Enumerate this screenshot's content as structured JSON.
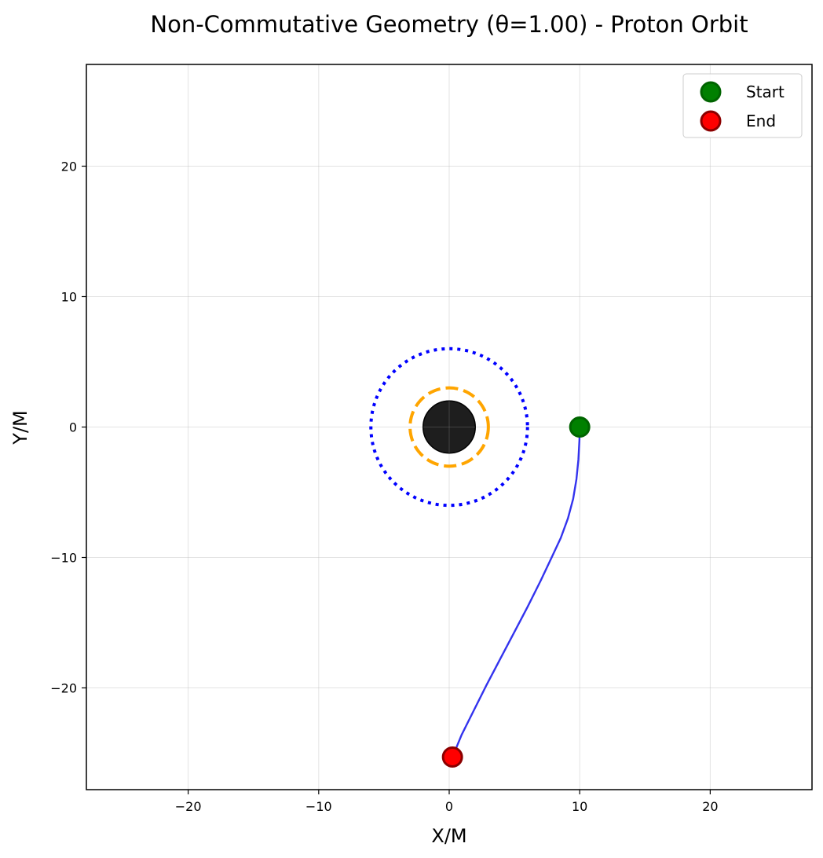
{
  "chart_data": {
    "type": "scatter",
    "title": "Non-Commutative Geometry (θ=1.00) - Proton Orbit",
    "xlabel": "X/M",
    "ylabel": "Y/M",
    "xlim": [
      -27.8,
      27.8
    ],
    "ylim": [
      -27.8,
      27.8
    ],
    "grid": true,
    "aspect": "equal",
    "xticks": [
      {
        "value": -20,
        "label": "−20"
      },
      {
        "value": -10,
        "label": "−10"
      },
      {
        "value": 0,
        "label": "0"
      },
      {
        "value": 10,
        "label": "10"
      },
      {
        "value": 20,
        "label": "20"
      }
    ],
    "yticks": [
      {
        "value": 20,
        "label": "20"
      },
      {
        "value": 10,
        "label": "10"
      },
      {
        "value": 0,
        "label": "0"
      },
      {
        "value": -10,
        "label": "−10"
      },
      {
        "value": -20,
        "label": "−20"
      }
    ],
    "black_hole": {
      "radius": 2.0,
      "color": "#1e1e1e"
    },
    "circles": [
      {
        "name": "photon-sphere",
        "radius": 3.0,
        "color": "#ffa500",
        "style": "dashed"
      },
      {
        "name": "isco",
        "radius": 6.0,
        "color": "#0000ff",
        "style": "dotted"
      }
    ],
    "trajectory": {
      "color": "#3333ee",
      "x": [
        10.0,
        9.98,
        9.9,
        9.75,
        9.5,
        9.1,
        8.55,
        7.85,
        7.0,
        6.0,
        4.95,
        3.9,
        2.85,
        1.85,
        0.95,
        0.25
      ],
      "y": [
        0.0,
        -1.0,
        -2.5,
        -4.0,
        -5.5,
        -7.0,
        -8.5,
        -10.0,
        -11.8,
        -13.8,
        -15.8,
        -17.8,
        -19.8,
        -21.8,
        -23.6,
        -25.3
      ]
    },
    "markers": [
      {
        "label": "Start",
        "x": 10.0,
        "y": 0.0,
        "fill": "#008000",
        "edge": "#006400"
      },
      {
        "label": "End",
        "x": 0.25,
        "y": -25.3,
        "fill": "#ff0000",
        "edge": "#8b0000"
      }
    ],
    "legend": {
      "position": "top-right",
      "entries": [
        "Start",
        "End"
      ]
    }
  }
}
